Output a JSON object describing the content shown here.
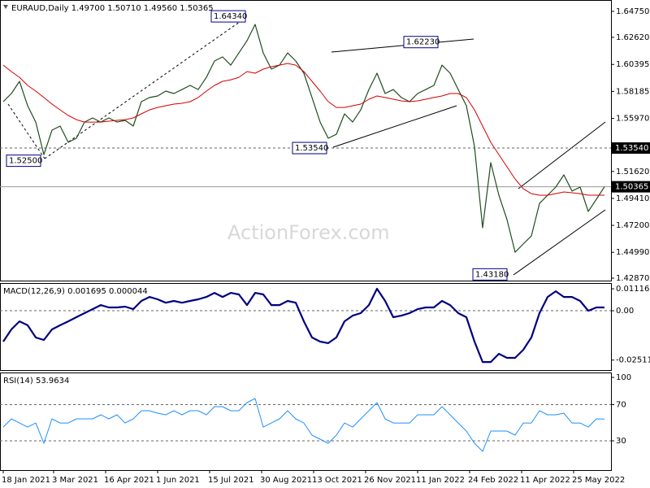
{
  "watermark": "ActionForex.com",
  "chart_data": [
    {
      "type": "line",
      "title": "EURAUD,Daily  1.49700 1.50710 1.49560 1.50365",
      "xlim": [
        -0.4,
        74.8
      ],
      "ylim": [
        1.4267,
        1.6568
      ],
      "yticks": [
        {
          "value": 1.6475,
          "label": "1.64750"
        },
        {
          "value": 1.6262,
          "label": "1.62620"
        },
        {
          "value": 1.60395,
          "label": "1.60395"
        },
        {
          "value": 1.58185,
          "label": "1.58185"
        },
        {
          "value": 1.5597,
          "label": "1.55970"
        },
        {
          "value": 1.5162,
          "label": "1.51620"
        },
        {
          "value": 1.4941,
          "label": "1.49410"
        },
        {
          "value": 1.472,
          "label": "1.47200"
        },
        {
          "value": 1.4499,
          "label": "1.44990"
        },
        {
          "value": 1.4287,
          "label": "1.42870"
        }
      ],
      "levels": [
        {
          "value": 1.5354,
          "label": "1.53540",
          "style": "dashed"
        },
        {
          "value": 1.50365,
          "label": "1.50365",
          "style": "solid"
        }
      ],
      "series": [
        {
          "name": "EURAUD",
          "color": "#1f4d1f",
          "width": 1.2,
          "values": [
            1.5734,
            1.5801,
            1.5901,
            1.5701,
            1.5567,
            1.53,
            1.5501,
            1.5534,
            1.5401,
            1.5434,
            1.5567,
            1.5601,
            1.5567,
            1.5601,
            1.5567,
            1.5581,
            1.5534,
            1.5734,
            1.5768,
            1.5781,
            1.5821,
            1.5801,
            1.5834,
            1.5868,
            1.5834,
            1.5934,
            1.6068,
            1.6101,
            1.6034,
            1.6134,
            1.6234,
            1.6368,
            1.6134,
            1.6001,
            1.6034,
            1.6134,
            1.6068,
            1.5968,
            1.5768,
            1.5567,
            1.5434,
            1.5467,
            1.5634,
            1.5567,
            1.5667,
            1.5834,
            1.5968,
            1.5801,
            1.5834,
            1.5768,
            1.5734,
            1.5801,
            1.5834,
            1.5868,
            1.6034,
            1.5968,
            1.5834,
            1.5701,
            1.5367,
            1.47,
            1.5234,
            1.4967,
            1.4767,
            1.45,
            1.4567,
            1.4633,
            1.49,
            1.4967,
            1.5034,
            1.5134,
            1.5001,
            1.5034,
            1.4834,
            1.4934,
            1.50365
          ]
        },
        {
          "name": "MA",
          "color": "#d40000",
          "width": 1,
          "values": [
            1.6034,
            1.5981,
            1.5934,
            1.5868,
            1.5821,
            1.5768,
            1.5714,
            1.5667,
            1.5621,
            1.5587,
            1.5567,
            1.5567,
            1.5567,
            1.5574,
            1.5581,
            1.5587,
            1.5601,
            1.5634,
            1.5667,
            1.5687,
            1.5701,
            1.5714,
            1.5721,
            1.5734,
            1.5768,
            1.5821,
            1.5868,
            1.5901,
            1.5914,
            1.5934,
            1.5981,
            1.5968,
            1.6001,
            1.6021,
            1.6034,
            1.6048,
            1.6034,
            1.5981,
            1.5901,
            1.5821,
            1.5734,
            1.5687,
            1.5687,
            1.5701,
            1.5714,
            1.5754,
            1.5781,
            1.5768,
            1.5754,
            1.5741,
            1.5734,
            1.5741,
            1.5754,
            1.5768,
            1.5781,
            1.5801,
            1.5801,
            1.5768,
            1.5667,
            1.5534,
            1.5401,
            1.53,
            1.52,
            1.51,
            1.502,
            1.498,
            1.4967,
            1.4967,
            1.498,
            1.4994,
            1.4987,
            1.498,
            1.4967,
            1.4967,
            1.4967
          ]
        }
      ],
      "annotations": [
        {
          "value": 1.525,
          "label": "1.52500"
        },
        {
          "value": 1.6434,
          "label": "1.64340"
        },
        {
          "value": 1.5354,
          "label": "1.53540"
        },
        {
          "value": 1.6223,
          "label": "1.62230"
        },
        {
          "value": 1.4318,
          "label": "1.43180"
        }
      ]
    },
    {
      "type": "line",
      "title": "MACD(12,26,9) 0.001695 0.000044",
      "xlim": [
        -0.4,
        74.8
      ],
      "ylim": [
        -0.0302,
        0.0141
      ],
      "yticks": [
        {
          "value": 0.011168,
          "label": "0.011168"
        },
        {
          "value": 0,
          "label": "0.00"
        },
        {
          "value": -0.025117,
          "label": "-0.025117"
        }
      ],
      "levels": [
        0
      ],
      "series": [
        {
          "name": "MACD",
          "color": "#000080",
          "width": 2.2,
          "values": [
            -0.0157,
            -0.0095,
            -0.0054,
            -0.0074,
            -0.0136,
            -0.0149,
            -0.0095,
            -0.0074,
            -0.0054,
            -0.0033,
            -0.0012,
            0.0008,
            0.0029,
            0.0017,
            0.0017,
            0.0021,
            0.0008,
            0.005,
            0.007,
            0.0058,
            0.0041,
            0.005,
            0.0041,
            0.005,
            0.0058,
            0.007,
            0.0091,
            0.007,
            0.0091,
            0.0083,
            0.0029,
            0.0091,
            0.0083,
            0.0029,
            0.0029,
            0.005,
            0.0041,
            -0.0054,
            -0.0136,
            -0.0157,
            -0.0165,
            -0.0136,
            -0.0054,
            -0.0025,
            -0.0012,
            0.0029,
            0.0112,
            0.005,
            -0.0033,
            -0.0025,
            -0.0012,
            0.0008,
            0.0017,
            0.0017,
            0.005,
            0.0029,
            -0.0012,
            -0.0033,
            -0.0157,
            -0.0261,
            -0.0261,
            -0.0219,
            -0.024,
            -0.024,
            -0.0199,
            -0.0136,
            -0.0012,
            0.007,
            0.0099,
            0.007,
            0.007,
            0.005,
            0,
            0.0017,
            0.001695
          ]
        }
      ]
    },
    {
      "type": "line",
      "title": "RSI(14) 53.9634",
      "xlim": [
        -0.4,
        74.8
      ],
      "ylim": [
        -2.3,
        105.4
      ],
      "yticks": [
        100,
        70,
        30
      ],
      "levels": [
        70,
        30
      ],
      "series": [
        {
          "name": "RSI",
          "color": "#1e90ff",
          "width": 1,
          "values": [
            45.2,
            54.2,
            49.7,
            45.2,
            49.7,
            27.3,
            54.2,
            49.7,
            49.7,
            54.2,
            54.2,
            54.2,
            58.7,
            54.2,
            58.7,
            49.7,
            54.2,
            63.2,
            63.2,
            60.5,
            58.7,
            63.2,
            58.7,
            63.2,
            63.2,
            58.7,
            67.7,
            67.7,
            63.2,
            63.2,
            72.2,
            76.7,
            45.2,
            49.7,
            54.2,
            63.2,
            54.2,
            49.7,
            36.3,
            31.8,
            27.3,
            36.3,
            49.7,
            45.2,
            54.2,
            63.2,
            72.2,
            54.2,
            49.7,
            49.7,
            49.7,
            58.7,
            58.7,
            58.7,
            67.7,
            58.7,
            49.7,
            40.8,
            27.3,
            18.3,
            40.8,
            40.8,
            40.8,
            36.3,
            49.7,
            49.7,
            63.2,
            58.7,
            58.7,
            60.5,
            49.7,
            49.7,
            45.2,
            54.2,
            53.9634
          ]
        }
      ],
      "xticks": [
        {
          "value": 0,
          "label": "18 Jan 2021"
        },
        {
          "value": 6.2,
          "label": "3 Mar 2021"
        },
        {
          "value": 12.6,
          "label": "16 Apr 2021"
        },
        {
          "value": 19,
          "label": "1 Jun 2021"
        },
        {
          "value": 25.4,
          "label": "15 Jul 2021"
        },
        {
          "value": 31.8,
          "label": "30 Aug 2021"
        },
        {
          "value": 38.2,
          "label": "13 Oct 2021"
        },
        {
          "value": 44.6,
          "label": "26 Nov 2021"
        },
        {
          "value": 51,
          "label": "11 Jan 2022"
        },
        {
          "value": 57.4,
          "label": "24 Feb 2022"
        },
        {
          "value": 63.8,
          "label": "11 Apr 2022"
        },
        {
          "value": 70.2,
          "label": "25 May 2022"
        }
      ]
    }
  ]
}
